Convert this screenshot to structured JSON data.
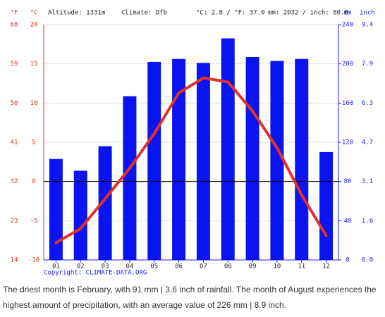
{
  "chart_data": {
    "type": "climate",
    "header": {
      "f_unit": "°F",
      "c_unit": "°C",
      "altitude": "Altitude: 1331m",
      "climate": "Climate: Dfb",
      "temp_summary": "°C: 2.8 / °F: 37.0",
      "precip_summary": "mm: 2032 / inch: 80.0",
      "mm_unit": "mm",
      "inch_unit": "inch"
    },
    "categories": [
      "01",
      "02",
      "03",
      "04",
      "05",
      "06",
      "07",
      "08",
      "09",
      "10",
      "11",
      "12"
    ],
    "series": [
      {
        "name": "Precipitation",
        "color": "#0a14f0",
        "axis": "y2",
        "values": [
          103,
          91,
          116,
          167,
          202,
          205,
          201,
          226,
          207,
          203,
          205,
          110
        ]
      },
      {
        "name": "Temperature",
        "color": "#e2302a",
        "values": [
          -7.8,
          -6.0,
          -2.2,
          1.7,
          6.1,
          11.3,
          13.2,
          12.7,
          9.0,
          4.3,
          -1.7,
          -6.9
        ]
      }
    ],
    "ylim": [
      -10,
      20
    ],
    "yticks": [
      -10,
      -5,
      0,
      5,
      10,
      15,
      20
    ],
    "flim": [
      14,
      68
    ],
    "fticks": [
      14,
      23,
      32,
      41,
      50,
      59,
      68
    ],
    "y2lim": [
      0,
      240
    ],
    "y2ticks": [
      0,
      40,
      80,
      120,
      160,
      200,
      240
    ],
    "inchticks": [
      {
        "value": 0,
        "label": "0.0"
      },
      1.6,
      3.1,
      4.7,
      6.3,
      7.9,
      9.4
    ],
    "grid": true,
    "copyright": "Copyright: CLIMATE-DATA.ORG"
  },
  "caption": "The driest month is February, with 91 mm | 3.6 inch of rainfall. The month of August experiences the highest amount of precipitation, with an average value of 226 mm | 8.9 inch."
}
